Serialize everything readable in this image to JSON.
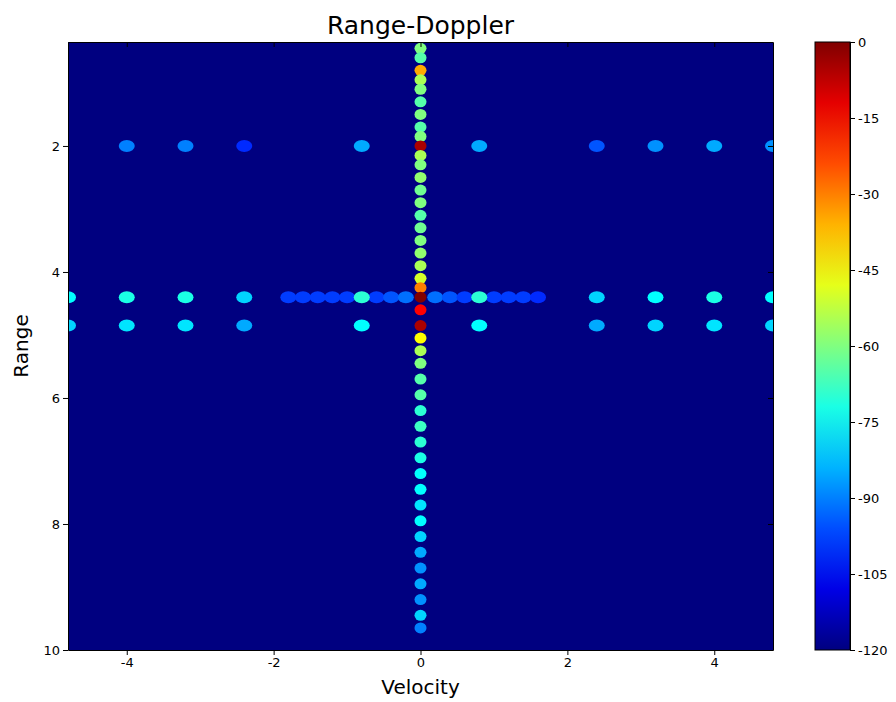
{
  "chart_data": {
    "type": "heatmap",
    "title": "Range-Doppler",
    "x_label": "Velocity",
    "y_label": "Range",
    "xlim": [
      -4.8,
      4.8
    ],
    "xticks": [
      -4,
      -2,
      0,
      2,
      4
    ],
    "ylim": [
      0.35,
      10
    ],
    "yticks": [
      2,
      4,
      6,
      8,
      10
    ],
    "colorbar": {
      "range": [
        -120,
        0
      ],
      "ticks": [
        0,
        -15,
        -30,
        -45,
        -60,
        -75,
        -90,
        -105,
        -120
      ]
    },
    "cells": [
      [
        -1.8,
        4.4,
        -98
      ],
      [
        -1.6,
        4.4,
        -98
      ],
      [
        -1.4,
        4.4,
        -98
      ],
      [
        -1.2,
        4.4,
        -98
      ],
      [
        -1.0,
        4.4,
        -98
      ],
      [
        -0.6,
        4.4,
        -98
      ],
      [
        -0.4,
        4.4,
        -95
      ],
      [
        -0.2,
        4.4,
        -92
      ],
      [
        0.2,
        4.4,
        -92
      ],
      [
        0.4,
        4.4,
        -95
      ],
      [
        0.6,
        4.4,
        -98
      ],
      [
        1.0,
        4.4,
        -98
      ],
      [
        1.2,
        4.4,
        -98
      ],
      [
        1.4,
        4.4,
        -98
      ],
      [
        1.6,
        4.4,
        -100
      ],
      [
        -4.0,
        2.0,
        -90
      ],
      [
        -3.2,
        2.0,
        -90
      ],
      [
        -2.4,
        2.0,
        -100
      ],
      [
        -0.8,
        2.0,
        -85
      ],
      [
        0.8,
        2.0,
        -85
      ],
      [
        2.4,
        2.0,
        -95
      ],
      [
        3.2,
        2.0,
        -88
      ],
      [
        4.0,
        2.0,
        -85
      ],
      [
        4.8,
        2.0,
        -88
      ],
      [
        -4.8,
        4.4,
        -75
      ],
      [
        -4.0,
        4.4,
        -72
      ],
      [
        -3.2,
        4.4,
        -72
      ],
      [
        -2.4,
        4.4,
        -80
      ],
      [
        -0.8,
        4.4,
        -70
      ],
      [
        0.8,
        4.4,
        -70
      ],
      [
        2.4,
        4.4,
        -80
      ],
      [
        3.2,
        4.4,
        -75
      ],
      [
        4.0,
        4.4,
        -72
      ],
      [
        4.8,
        4.4,
        -75
      ],
      [
        -4.8,
        4.85,
        -80
      ],
      [
        -4.0,
        4.85,
        -78
      ],
      [
        -3.2,
        4.85,
        -78
      ],
      [
        -2.4,
        4.85,
        -85
      ],
      [
        -0.8,
        4.85,
        -75
      ],
      [
        0.8,
        4.85,
        -75
      ],
      [
        2.4,
        4.85,
        -85
      ],
      [
        3.2,
        4.85,
        -80
      ],
      [
        4.0,
        4.85,
        -78
      ],
      [
        4.8,
        4.85,
        -80
      ],
      [
        0,
        0.45,
        -60
      ],
      [
        0,
        0.6,
        -65
      ],
      [
        0,
        0.8,
        -35
      ],
      [
        0,
        0.95,
        -55
      ],
      [
        0,
        1.1,
        -60
      ],
      [
        0,
        1.3,
        -65
      ],
      [
        0,
        1.5,
        -60
      ],
      [
        0,
        1.7,
        -65
      ],
      [
        0,
        1.85,
        -60
      ],
      [
        0,
        2.0,
        -5
      ],
      [
        0,
        2.15,
        -55
      ],
      [
        0,
        2.3,
        -60
      ],
      [
        0,
        2.5,
        -58
      ],
      [
        0,
        2.7,
        -62
      ],
      [
        0,
        2.9,
        -60
      ],
      [
        0,
        3.1,
        -65
      ],
      [
        0,
        3.3,
        -62
      ],
      [
        0,
        3.5,
        -60
      ],
      [
        0,
        3.7,
        -58
      ],
      [
        0,
        3.9,
        -55
      ],
      [
        0,
        4.1,
        -50
      ],
      [
        0,
        4.25,
        -30
      ],
      [
        0,
        4.4,
        0
      ],
      [
        0,
        4.6,
        -15
      ],
      [
        0,
        4.85,
        -5
      ],
      [
        0,
        5.05,
        -45
      ],
      [
        0,
        5.25,
        -55
      ],
      [
        0,
        5.45,
        -60
      ],
      [
        0,
        5.7,
        -65
      ],
      [
        0,
        5.95,
        -65
      ],
      [
        0,
        6.2,
        -70
      ],
      [
        0,
        6.45,
        -68
      ],
      [
        0,
        6.7,
        -70
      ],
      [
        0,
        6.95,
        -72
      ],
      [
        0,
        7.2,
        -75
      ],
      [
        0,
        7.45,
        -75
      ],
      [
        0,
        7.7,
        -78
      ],
      [
        0,
        7.95,
        -75
      ],
      [
        0,
        8.2,
        -80
      ],
      [
        0,
        8.45,
        -85
      ],
      [
        0,
        8.7,
        -88
      ],
      [
        0,
        8.95,
        -85
      ],
      [
        0,
        9.2,
        -88
      ],
      [
        0,
        9.45,
        -80
      ],
      [
        0,
        9.65,
        -90
      ]
    ]
  }
}
